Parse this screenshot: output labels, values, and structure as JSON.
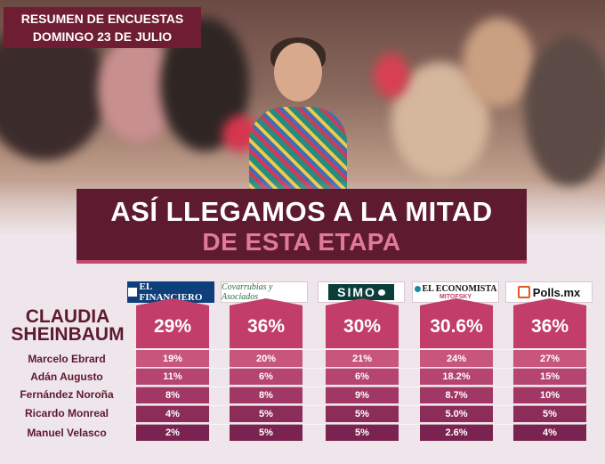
{
  "header": {
    "line1": "RESUMEN DE ENCUESTAS",
    "line2": "DOMINGO 23 DE JULIO"
  },
  "banner": {
    "line1": "ASÍ LLEGAMOS A LA MITAD",
    "line2": "DE ESTA ETAPA"
  },
  "main_candidate": {
    "first": "CLAUDIA",
    "last": "SHEINBAUM"
  },
  "pollsters": [
    {
      "name": "EL FINANCIERO",
      "icon": "building-icon"
    },
    {
      "name": "Covarrubias y Asociados",
      "icon": ""
    },
    {
      "name": "SIMO",
      "icon": "chat-bubble-icon"
    },
    {
      "name": "EL ECONOMISTA",
      "sub": "MITOFSKY",
      "icon": "globe-icon"
    },
    {
      "name": "Polls.mx",
      "icon": "chart-icon"
    }
  ],
  "candidates": [
    "Marcelo Ebrard",
    "Adán Augusto",
    "Fernández Noroña",
    "Ricardo Monreal",
    "Manuel Velasco"
  ],
  "results": [
    {
      "main": "29%",
      "others": [
        "19%",
        "11%",
        "8%",
        "4%",
        "2%"
      ]
    },
    {
      "main": "36%",
      "others": [
        "20%",
        "6%",
        "8%",
        "5%",
        "5%"
      ]
    },
    {
      "main": "30%",
      "others": [
        "21%",
        "6%",
        "9%",
        "5%",
        "5%"
      ]
    },
    {
      "main": "30.6%",
      "others": [
        "24%",
        "18.2%",
        "8.7%",
        "5.0%",
        "2.6%"
      ]
    },
    {
      "main": "36%",
      "others": [
        "27%",
        "15%",
        "10%",
        "5%",
        "4%"
      ]
    }
  ],
  "colors": {
    "dark_wine": "#5e1a2f",
    "header_wine": "#6f1d33",
    "main_pink": "#c23d6a",
    "row_colors": [
      "#c8567c",
      "#b54470",
      "#a13765",
      "#8c2c58",
      "#7a2350"
    ]
  }
}
